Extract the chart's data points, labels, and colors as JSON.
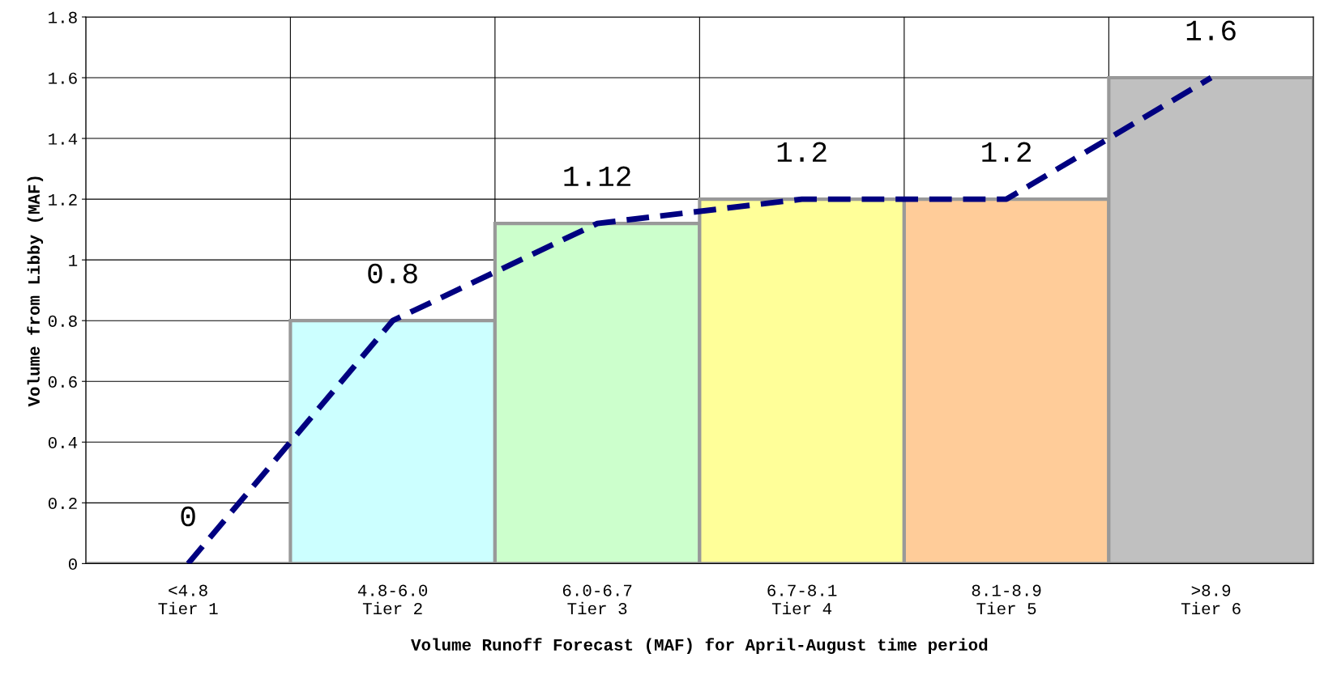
{
  "chart_data": {
    "type": "bar",
    "xlabel": "Volume Runoff Forecast (MAF) for April-August time period",
    "ylabel": "Volume from Libby (MAF)",
    "categories": [
      "<4.8\nTier 1",
      "4.8-6.0\nTier 2",
      "6.0-6.7\nTier 3",
      "6.7-8.1\nTier 4",
      "8.1-8.9\nTier 5",
      ">8.9\nTier 6"
    ],
    "series": [
      {
        "values": [
          0,
          0.8,
          1.12,
          1.2,
          1.2,
          1.6
        ],
        "colors": [
          "#999999",
          "#ccffff",
          "#ccffcc",
          "#ffff99",
          "#ffcc99",
          "#c0c0c0"
        ]
      },
      {
        "type": "line",
        "values": [
          0,
          0.8,
          1.12,
          1.2,
          1.2,
          1.6
        ],
        "color": "#000080",
        "line_style": "dashed",
        "data_labels": true
      }
    ],
    "ylim": [
      0,
      1.8
    ],
    "yticks": [
      0,
      0.2,
      0.4,
      0.6,
      0.8,
      1,
      1.2,
      1.4,
      1.6,
      1.8
    ],
    "grid": true
  }
}
